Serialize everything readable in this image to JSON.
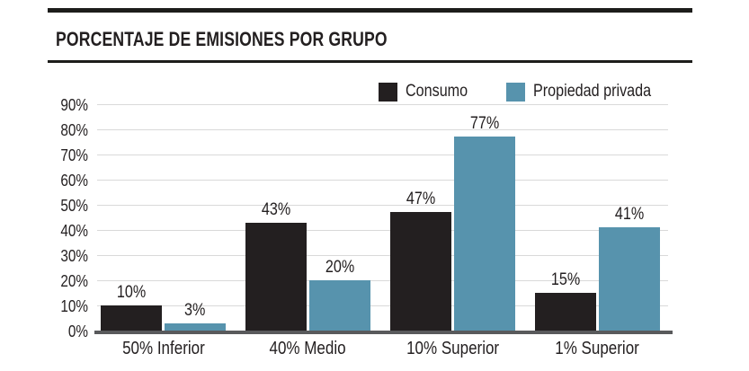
{
  "header": {
    "title": "PORCENTAJE DE EMISIONES POR GRUPO"
  },
  "legend": {
    "items": [
      {
        "name": "consumo",
        "label": "Consumo",
        "color": "#231f20"
      },
      {
        "name": "propiedad-privada",
        "label": "Propiedad privada",
        "color": "#5793ad"
      }
    ]
  },
  "chart_data": {
    "type": "bar",
    "title": "PORCENTAJE DE EMISIONES POR GRUPO",
    "categories": [
      "50% Inferior",
      "40% Medio",
      "10% Superior",
      "1% Superior"
    ],
    "series": [
      {
        "name": "Consumo",
        "color": "#231f20",
        "values": [
          10,
          43,
          47,
          15
        ],
        "value_labels": [
          "10%",
          "43%",
          "47%",
          "15%"
        ]
      },
      {
        "name": "Propiedad privada",
        "color": "#5793ad",
        "values": [
          3,
          20,
          77,
          41
        ],
        "value_labels": [
          "3%",
          "20%",
          "77%",
          "41%"
        ]
      }
    ],
    "xlabel": "",
    "ylabel": "",
    "ylim": [
      0,
      90
    ],
    "yticks": [
      0,
      10,
      20,
      30,
      40,
      50,
      60,
      70,
      80,
      90
    ],
    "ytick_labels": [
      "0%",
      "10%",
      "20%",
      "30%",
      "40%",
      "50%",
      "60%",
      "70%",
      "80%",
      "90%"
    ],
    "grid": "horizontal",
    "legend_position": "top-right"
  },
  "colors": {
    "bar_consumo": "#231f20",
    "bar_propiedad": "#5793ad",
    "gridline": "#d9d9d9",
    "axis_baseline": "#595a5c",
    "text": "#231f20",
    "rule": "#1d1d1b",
    "background": "#ffffff"
  }
}
